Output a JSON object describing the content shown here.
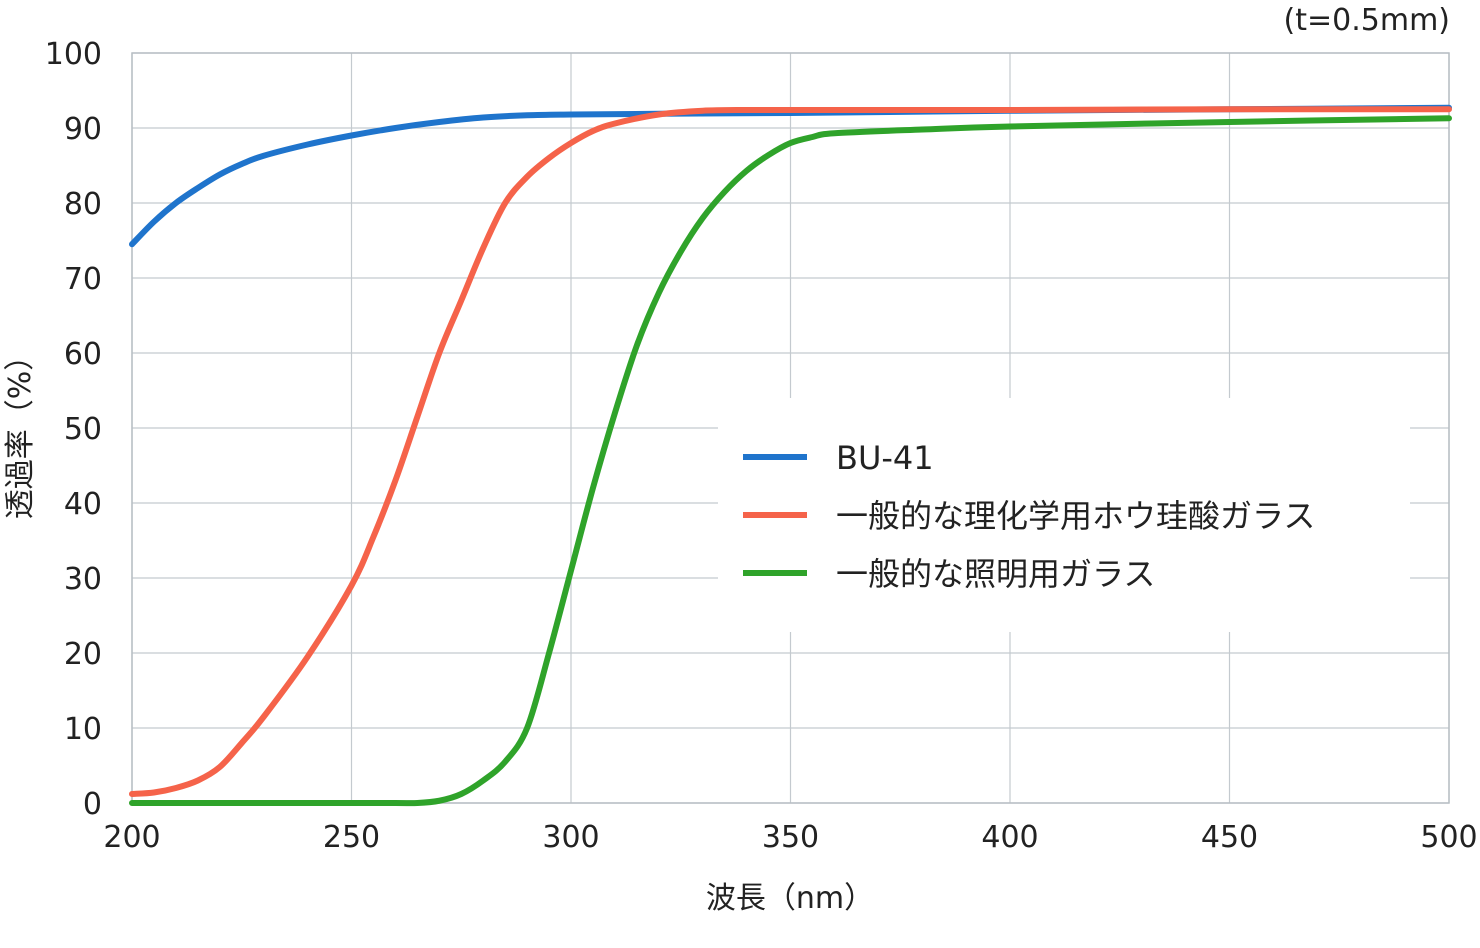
{
  "chart_data": {
    "type": "line",
    "title": "",
    "note": "(t=0.5mm)",
    "xlabel": "波長（nm）",
    "ylabel": "透過率（%）",
    "xlim": [
      200,
      500
    ],
    "ylim": [
      0,
      100
    ],
    "xticks": [
      "200",
      "250",
      "300",
      "350",
      "400",
      "450",
      "500"
    ],
    "yticks": [
      "0",
      "10",
      "20",
      "30",
      "40",
      "50",
      "60",
      "70",
      "80",
      "90",
      "100"
    ],
    "grid": true,
    "legend_position": "center-right",
    "series": [
      {
        "name": "BU-41",
        "color": "#1f74cc",
        "x": [
          200,
          205,
          210,
          215,
          220,
          225,
          230,
          240,
          250,
          260,
          270,
          280,
          290,
          300,
          320,
          350,
          400,
          450,
          500
        ],
        "y": [
          74.5,
          77.5,
          80,
          82,
          83.8,
          85.2,
          86.3,
          87.8,
          89,
          90,
          90.8,
          91.4,
          91.7,
          91.8,
          91.9,
          92,
          92.3,
          92.5,
          92.7
        ]
      },
      {
        "name": "一般的な理化学用ホウ珪酸ガラス",
        "color": "#f5634a",
        "x": [
          200,
          205,
          210,
          215,
          220,
          225,
          230,
          240,
          250,
          255,
          260,
          265,
          270,
          275,
          280,
          285,
          290,
          295,
          300,
          305,
          310,
          320,
          330,
          340,
          350,
          400,
          450,
          500
        ],
        "y": [
          1.2,
          1.4,
          2,
          3,
          4.8,
          8,
          11.5,
          19.5,
          29,
          35.5,
          43,
          51.5,
          60,
          67,
          74,
          80,
          83.5,
          86,
          88,
          89.6,
          90.6,
          91.8,
          92.3,
          92.4,
          92.4,
          92.4,
          92.5,
          92.5
        ]
      },
      {
        "name": "一般的な照明用ガラス",
        "color": "#2fa32a",
        "x": [
          200,
          220,
          240,
          260,
          265,
          270,
          275,
          280,
          285,
          290,
          295,
          300,
          305,
          310,
          315,
          320,
          325,
          330,
          335,
          340,
          345,
          350,
          355,
          360,
          380,
          400,
          450,
          500
        ],
        "y": [
          0,
          0,
          0,
          0,
          0,
          0.3,
          1.2,
          3,
          5.5,
          10,
          20,
          31,
          42,
          52,
          61,
          68,
          73.5,
          78,
          81.5,
          84.3,
          86.4,
          88,
          88.8,
          89.3,
          89.8,
          90.2,
          90.8,
          91.3
        ]
      }
    ]
  }
}
